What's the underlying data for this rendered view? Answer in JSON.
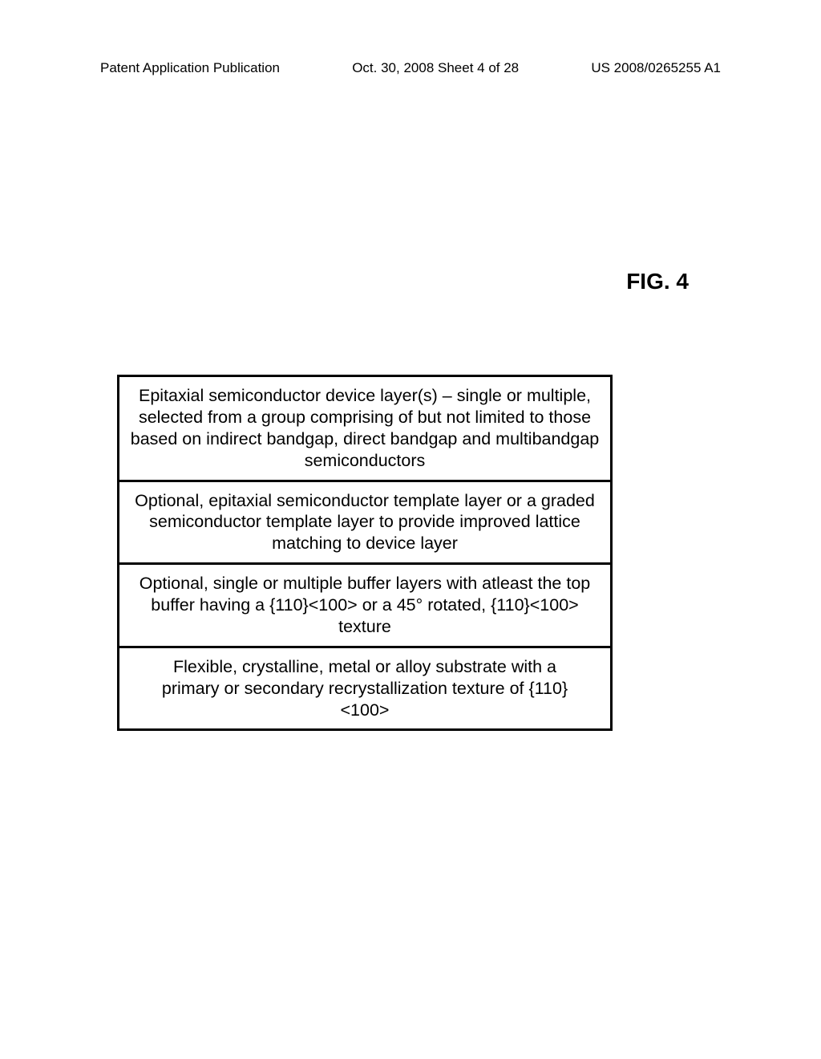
{
  "header": {
    "left": "Patent Application Publication",
    "center": "Oct. 30, 2008  Sheet 4 of 28",
    "right": "US 2008/0265255 A1"
  },
  "figure_label": "FIG. 4",
  "diagram": {
    "background_color": "#ffffff",
    "border_color": "#000000",
    "border_width": 3,
    "text_color": "#000000",
    "font_size": 21.5,
    "layers": [
      {
        "text": "Epitaxial semiconductor device layer(s) – single or multiple, selected from a group comprising of but not limited to those based on indirect bandgap, direct bandgap and multibandgap semiconductors"
      },
      {
        "text": "Optional, epitaxial semiconductor template layer or a graded semiconductor template layer to provide improved lattice matching to device layer"
      },
      {
        "text": "Optional, single or multiple buffer layers with atleast the top buffer having a {110}<100> or a 45° rotated, {110}<100> texture"
      },
      {
        "text": "Flexible, crystalline, metal or alloy substrate with a primary or secondary recrystallization texture of {110}<100>"
      }
    ]
  }
}
